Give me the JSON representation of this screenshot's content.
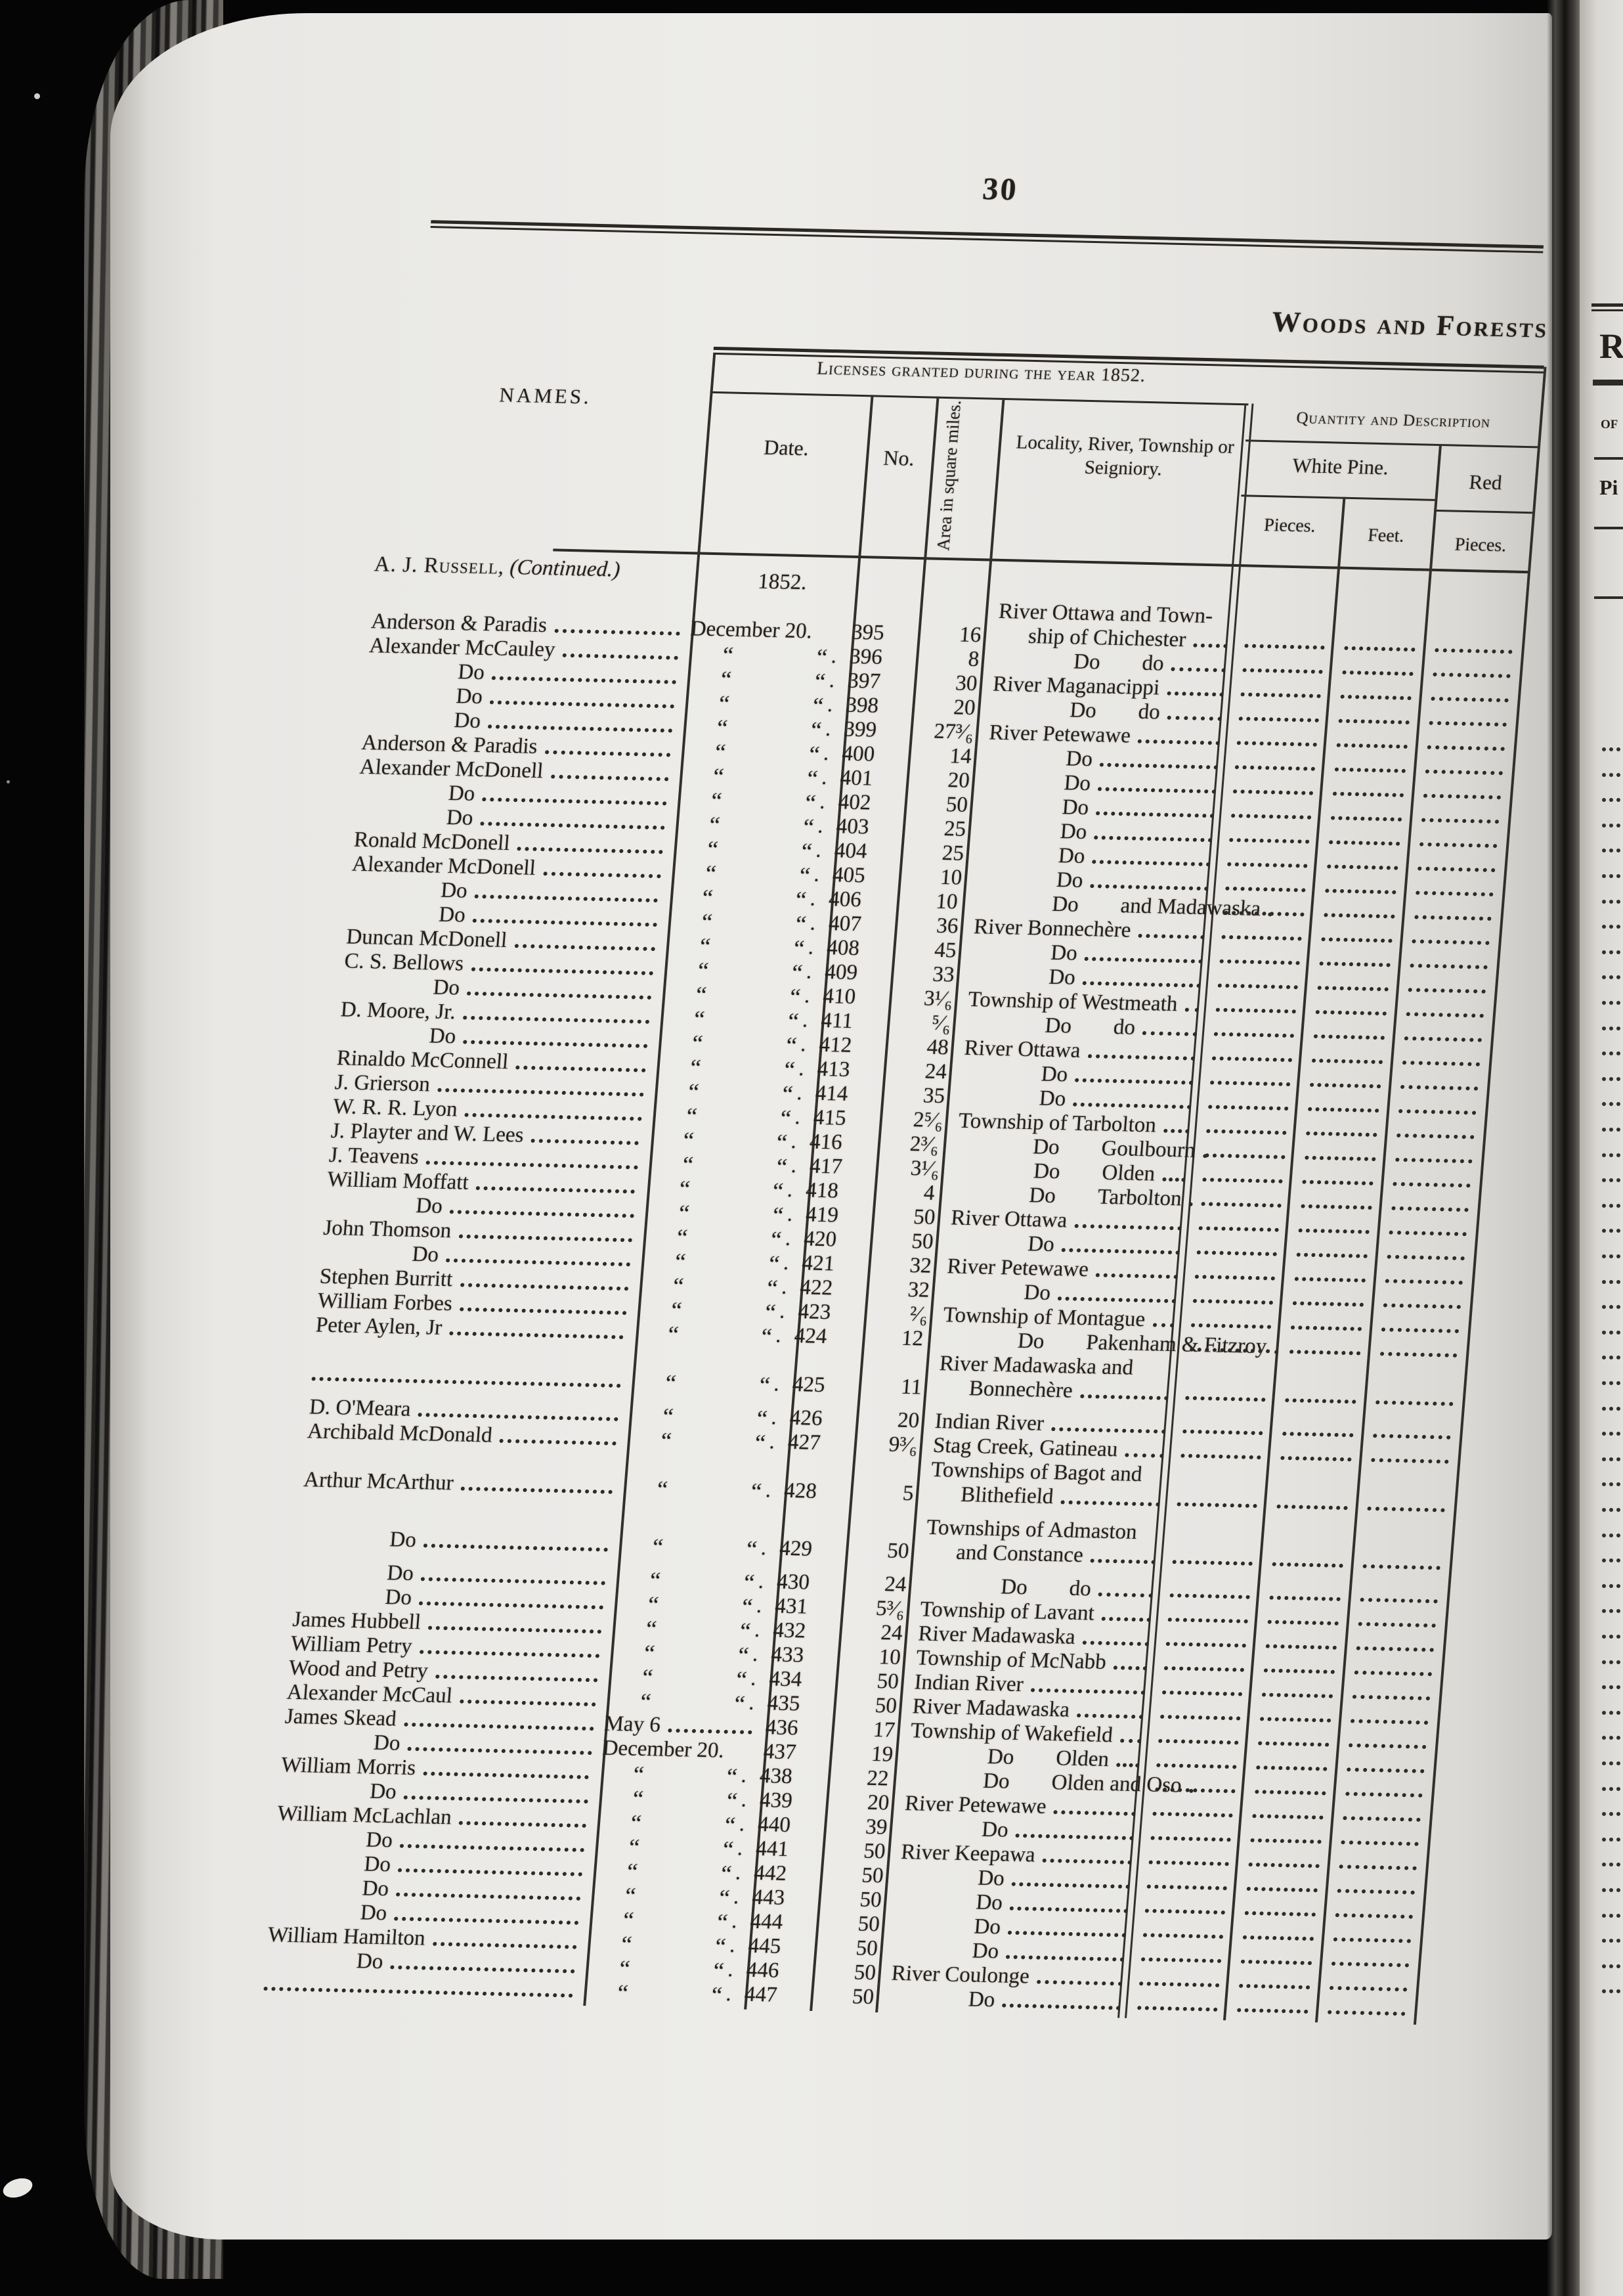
{
  "doc": {
    "page_number": "30",
    "section_heading": "Woods and Forests",
    "continued": {
      "name": "A. J. Russell,",
      "note": "(Continued.)"
    },
    "year_label": "1852.",
    "headers": {
      "licenses": "Licenses granted during the year 1852.",
      "quantity": "Quantity and Description",
      "names": "NAMES.",
      "date": "Date.",
      "no": "No.",
      "area": "Area in square miles.",
      "locality": "Locality, River, Township or Seigniory.",
      "white_pine": "White Pine.",
      "red": "Red",
      "pieces": "Pieces.",
      "feet": "Feet.",
      "pieces2": "Pieces."
    },
    "dates": {
      "december": "December 20.",
      "may": "May 6",
      "ditto": "“",
      "ditto_dot": "."
    },
    "rows": [
      {
        "n": "Anderson & Paradis",
        "dt": "dec",
        "no": "395",
        "a": "16",
        "l1": "River Ottawa and Town-",
        "lw": "ship of Chichester"
      },
      {
        "n": "Alexander McCauley",
        "dt": "q",
        "no": "396",
        "a": "8",
        "l1": "Do",
        "l2": "do",
        "ci": 1
      },
      {
        "n": "Do",
        "i": 1,
        "dt": "q",
        "no": "397",
        "a": "30",
        "l1": "River Maganacippi"
      },
      {
        "n": "Do",
        "i": 1,
        "dt": "q",
        "no": "398",
        "a": "20",
        "l1": "Do",
        "l2": "do",
        "ci": 1
      },
      {
        "n": "Do",
        "i": 1,
        "dt": "q",
        "no": "399",
        "a": "27³⁄₆",
        "l1": "River Petewawe"
      },
      {
        "n": "Anderson & Paradis",
        "dt": "q",
        "no": "400",
        "a": "14",
        "l1": "Do",
        "ci": 1
      },
      {
        "n": "Alexander McDonell",
        "dt": "q",
        "no": "401",
        "a": "20",
        "l1": "Do",
        "ci": 1
      },
      {
        "n": "Do",
        "i": 1,
        "dt": "q",
        "no": "402",
        "a": "50",
        "l1": "Do",
        "ci": 1
      },
      {
        "n": "Do",
        "i": 1,
        "dt": "q",
        "no": "403",
        "a": "25",
        "l1": "Do",
        "ci": 1
      },
      {
        "n": "Ronald McDonell",
        "dt": "q",
        "no": "404",
        "a": "25",
        "l1": "Do",
        "ci": 1
      },
      {
        "n": "Alexander McDonell",
        "dt": "q",
        "no": "405",
        "a": "10",
        "l1": "Do",
        "ci": 1
      },
      {
        "n": "Do",
        "i": 1,
        "dt": "q",
        "no": "406",
        "a": "10",
        "l1": "Do",
        "l2": "and Madawaska",
        "ci": 1
      },
      {
        "n": "Do",
        "i": 1,
        "dt": "q",
        "no": "407",
        "a": "36",
        "l1": "River Bonnechère"
      },
      {
        "n": "Duncan McDonell",
        "dt": "q",
        "no": "408",
        "a": "45",
        "l1": "Do",
        "ci": 1
      },
      {
        "n": "C. S. Bellows",
        "dt": "q",
        "no": "409",
        "a": "33",
        "l1": "Do",
        "ci": 1
      },
      {
        "n": "Do",
        "i": 1,
        "dt": "q",
        "no": "410",
        "a": "3¹⁄₆",
        "l1": "Township of Westmeath"
      },
      {
        "n": "D. Moore, Jr.",
        "dt": "q",
        "no": "411",
        "a": "⁵⁄₆",
        "l1": "Do",
        "l2": "do",
        "ci": 1
      },
      {
        "n": "Do",
        "i": 1,
        "dt": "q",
        "no": "412",
        "a": "48",
        "l1": "River Ottawa"
      },
      {
        "n": "Rinaldo McConnell",
        "dt": "q",
        "no": "413",
        "a": "24",
        "l1": "Do",
        "ci": 1
      },
      {
        "n": "J. Grierson",
        "dt": "q",
        "no": "414",
        "a": "35",
        "l1": "Do",
        "ci": 1
      },
      {
        "n": "W. R. R. Lyon",
        "dt": "q",
        "no": "415",
        "a": "2⁵⁄₆",
        "l1": "Township of Tarbolton"
      },
      {
        "n": "J. Playter and W. Lees",
        "dt": "q",
        "no": "416",
        "a": "2³⁄₆",
        "l1": "Do",
        "l2": "Goulbourn",
        "ci": 1
      },
      {
        "n": "J. Teavens",
        "dt": "q",
        "no": "417",
        "a": "3¹⁄₆",
        "l1": "Do",
        "l2": "Olden",
        "ci": 1
      },
      {
        "n": "William Moffatt",
        "dt": "q",
        "no": "418",
        "a": "4",
        "l1": "Do",
        "l2": "Tarbolton",
        "ci": 1
      },
      {
        "n": "Do",
        "i": 1,
        "dt": "q",
        "no": "419",
        "a": "50",
        "l1": "River Ottawa"
      },
      {
        "n": "John Thomson",
        "dt": "q",
        "no": "420",
        "a": "50",
        "l1": "Do",
        "ci": 1
      },
      {
        "n": "Do",
        "i": 1,
        "dt": "q",
        "no": "421",
        "a": "32",
        "l1": "River Petewawe"
      },
      {
        "n": "Stephen Burritt",
        "dt": "q",
        "no": "422",
        "a": "32",
        "l1": "Do",
        "ci": 1
      },
      {
        "n": "William Forbes",
        "dt": "q",
        "no": "423",
        "a": "²⁄₆",
        "l1": "Township of Montague"
      },
      {
        "n": "Peter Aylen, Jr",
        "dt": "q",
        "no": "424",
        "a": "12",
        "l1": "Do",
        "l2": "Pakenham & Fitzroy",
        "ci": 1
      },
      {
        "n": "",
        "dt": "q",
        "no": "425",
        "a": "11",
        "l1": "River Madawaska and",
        "lw": "Bonnechère"
      },
      {
        "n": "D. O'Meara",
        "dt": "q",
        "no": "426",
        "a": "20",
        "l1": "Indian River",
        "gap": 1
      },
      {
        "n": "Archibald McDonald",
        "dt": "q",
        "no": "427",
        "a": "9³⁄₆",
        "l1": "Stag Creek, Gatineau"
      },
      {
        "n": "Arthur McArthur",
        "dt": "q",
        "no": "428",
        "a": "5",
        "l1": "Townships of Bagot and",
        "lw": "Blithefield"
      },
      {
        "n": "Do",
        "i": 1,
        "dt": "q",
        "no": "429",
        "a": "50",
        "l1": "Townships of Admaston",
        "lw": "and Constance",
        "gap": 1
      },
      {
        "n": "Do",
        "i": 1,
        "dt": "q",
        "no": "430",
        "a": "24",
        "l1": "Do",
        "l2": "do",
        "ci": 1,
        "gap": 1
      },
      {
        "n": "Do",
        "i": 1,
        "dt": "q",
        "no": "431",
        "a": "5³⁄₆",
        "l1": "Township of Lavant"
      },
      {
        "n": "James Hubbell",
        "dt": "q",
        "no": "432",
        "a": "24",
        "l1": "River Madawaska"
      },
      {
        "n": "William Petry",
        "dt": "q",
        "no": "433",
        "a": "10",
        "l1": "Township of McNabb"
      },
      {
        "n": "Wood and Petry",
        "dt": "q",
        "no": "434",
        "a": "50",
        "l1": "Indian River"
      },
      {
        "n": "Alexander McCaul",
        "dt": "q",
        "no": "435",
        "a": "50",
        "l1": "River Madawaska"
      },
      {
        "n": "James Skead",
        "dt": "may",
        "no": "436",
        "a": "17",
        "l1": "Township of Wakefield"
      },
      {
        "n": "Do",
        "i": 1,
        "dt": "dec",
        "no": "437",
        "a": "19",
        "l1": "Do",
        "l2": "Olden",
        "ci": 1
      },
      {
        "n": "William Morris",
        "dt": "q",
        "no": "438",
        "a": "22",
        "l1": "Do",
        "l2": "Olden and Oso",
        "ci": 1
      },
      {
        "n": "Do",
        "i": 1,
        "dt": "q",
        "no": "439",
        "a": "20",
        "l1": "River Petewawe"
      },
      {
        "n": "William McLachlan",
        "dt": "q",
        "no": "440",
        "a": "39",
        "l1": "Do",
        "ci": 1
      },
      {
        "n": "Do",
        "i": 1,
        "dt": "q",
        "no": "441",
        "a": "50",
        "l1": "River Keepawa"
      },
      {
        "n": "Do",
        "i": 1,
        "dt": "q",
        "no": "442",
        "a": "50",
        "l1": "Do",
        "ci": 1
      },
      {
        "n": "Do",
        "i": 1,
        "dt": "q",
        "no": "443",
        "a": "50",
        "l1": "Do",
        "ci": 1
      },
      {
        "n": "Do",
        "i": 1,
        "dt": "q",
        "no": "444",
        "a": "50",
        "l1": "Do",
        "ci": 1
      },
      {
        "n": "William Hamilton",
        "dt": "q",
        "no": "445",
        "a": "50",
        "l1": "Do",
        "ci": 1
      },
      {
        "n": "Do",
        "i": 1,
        "dt": "q",
        "no": "446",
        "a": "50",
        "l1": "River Coulonge"
      },
      {
        "n": "",
        "dt": "q",
        "no": "447",
        "a": "50",
        "l1": "Do",
        "ci": 1
      }
    ],
    "next_page_fragments": {
      "r": "R",
      "of": "of",
      "pi": "Pi"
    }
  }
}
